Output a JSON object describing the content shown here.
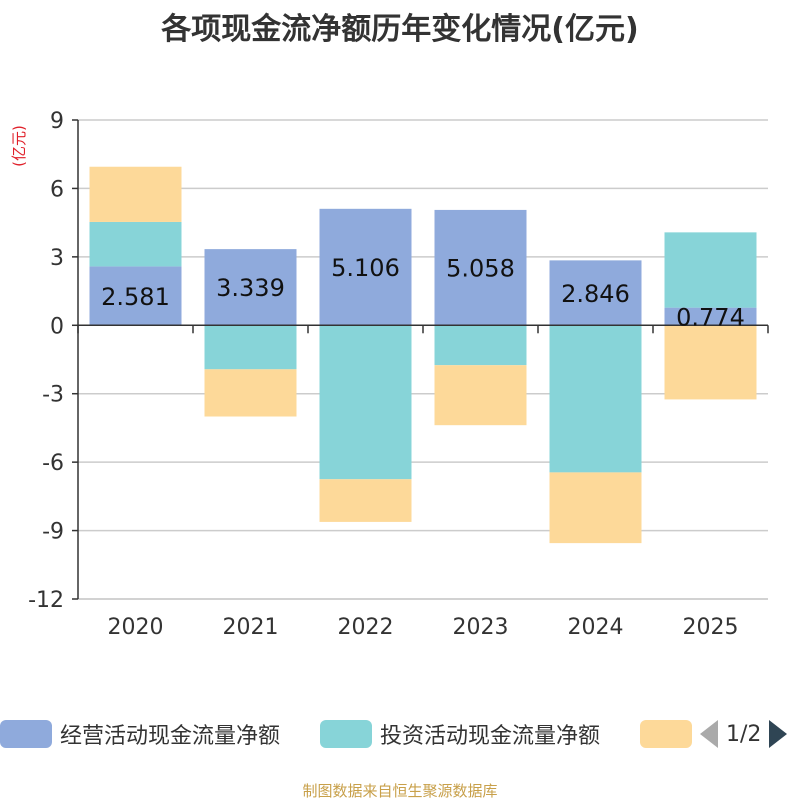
{
  "chart_data": {
    "type": "bar",
    "stacked": true,
    "title": "各项现金流净额历年变化情况(亿元)",
    "ylabel": "(亿元)",
    "categories": [
      "2020",
      "2021",
      "2022",
      "2023",
      "2024",
      "2025"
    ],
    "ylim": [
      -12,
      9
    ],
    "yticks": [
      9,
      6,
      3,
      0,
      -3,
      -6,
      -9,
      -12
    ],
    "series": [
      {
        "name": "经营活动现金流量净额",
        "color": "#8faadc",
        "values": [
          2.581,
          3.339,
          5.106,
          5.058,
          2.846,
          0.774
        ],
        "labels": [
          "2.581",
          "3.339",
          "5.106",
          "5.058",
          "2.846",
          "0.774"
        ]
      },
      {
        "name": "投资活动现金流量净额",
        "color": "#87d4d8",
        "values": [
          1.95,
          -1.93,
          -6.75,
          -1.75,
          -6.45,
          3.3
        ]
      },
      {
        "name": "",
        "color": "#fdd999",
        "values": [
          2.42,
          -2.07,
          -1.87,
          -2.63,
          -3.1,
          -3.25
        ]
      }
    ]
  },
  "legend": {
    "items": [
      {
        "label": "经营活动现金流量净额",
        "color": "#8faadc"
      },
      {
        "label": "投资活动现金流量净额",
        "color": "#87d4d8"
      },
      {
        "label": "",
        "color": "#fdd999"
      }
    ],
    "page": "1/2"
  },
  "footer": {
    "source": "制图数据来自恒生聚源数据库"
  }
}
